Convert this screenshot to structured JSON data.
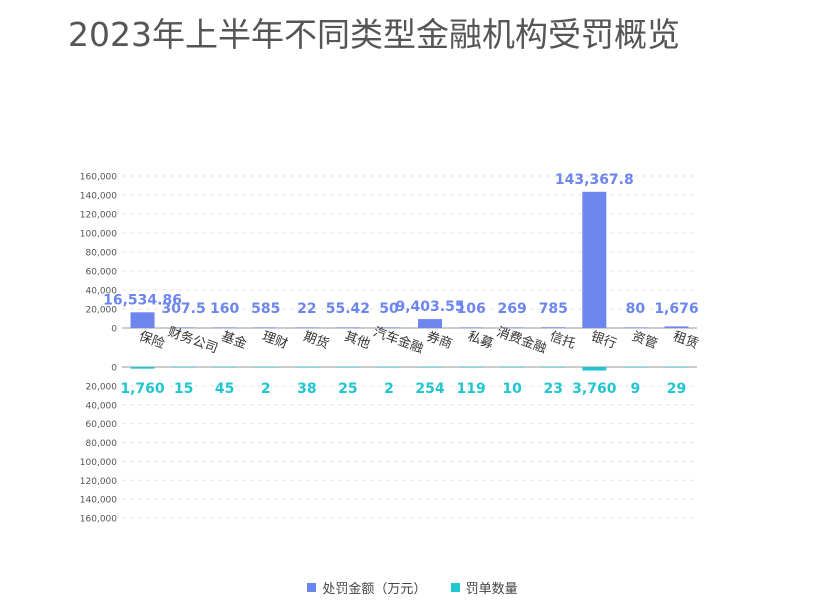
{
  "title": "2023年上半年不同类型金融机构受罚概览",
  "colors": {
    "amount": "#6d86ee",
    "count": "#21c6d0",
    "grid": "#e3e3e3",
    "axis": "#999999",
    "tick": "#555555"
  },
  "chart_data": [
    {
      "type": "bar",
      "categories": [
        "保险",
        "财务公司",
        "基金",
        "理财",
        "期货",
        "其他",
        "汽车金融",
        "券商",
        "私募",
        "消费金融",
        "信托",
        "银行",
        "资管",
        "租赁"
      ],
      "series": [
        {
          "name": "处罚金额（万元）",
          "values": [
            16534.86,
            307.5,
            160,
            585,
            22,
            55.42,
            50,
            9403.55,
            106,
            269,
            785,
            143367.8,
            80,
            1676
          ],
          "labels": [
            "16,534.86",
            "307.5",
            "160",
            "585",
            "22",
            "55.42",
            "50",
            "9,403.55",
            "106",
            "269",
            "785",
            "143,367.8",
            "80",
            "1,676"
          ]
        }
      ],
      "ylim": [
        0,
        160000
      ],
      "yticks": [
        "0",
        "20,000",
        "40,000",
        "60,000",
        "80,000",
        "100,000",
        "120,000",
        "140,000",
        "160,000"
      ],
      "grid": true
    },
    {
      "type": "bar",
      "categories": [
        "保险",
        "财务公司",
        "基金",
        "理财",
        "期货",
        "其他",
        "汽车金融",
        "券商",
        "私募",
        "消费金融",
        "信托",
        "银行",
        "资管",
        "租赁"
      ],
      "series": [
        {
          "name": "罚单数量",
          "values": [
            1760,
            15,
            45,
            2,
            38,
            25,
            2,
            254,
            119,
            10,
            23,
            3760,
            9,
            29
          ],
          "labels": [
            "1,760",
            "15",
            "45",
            "2",
            "38",
            "25",
            "2",
            "254",
            "119",
            "10",
            "23",
            "3,760",
            "9",
            "29"
          ]
        }
      ],
      "ylim": [
        0,
        160000
      ],
      "yticks": [
        "0",
        "20,000",
        "40,000",
        "60,000",
        "80,000",
        "100,000",
        "120,000",
        "140,000",
        "160,000"
      ],
      "inverted": true,
      "grid": true
    }
  ],
  "legend": [
    {
      "label": "处罚金额（万元）",
      "color": "#6d86ee"
    },
    {
      "label": "罚单数量",
      "color": "#21c6d0"
    }
  ]
}
